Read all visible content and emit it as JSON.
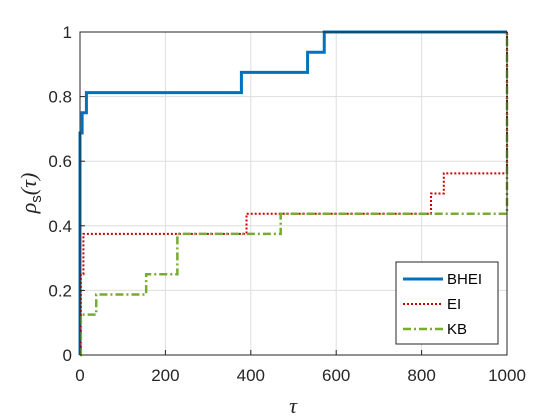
{
  "chart_data": {
    "type": "line",
    "step": true,
    "xlabel": "τ",
    "ylabel": "ρ",
    "ylabel_subscript": "s",
    "ylabel_suffix": "(τ)",
    "xlim": [
      0,
      1000
    ],
    "ylim": [
      0,
      1
    ],
    "xticks": [
      0,
      200,
      400,
      600,
      800,
      1000
    ],
    "yticks": [
      0,
      0.2,
      0.4,
      0.6,
      0.8,
      1
    ],
    "ytick_labels": [
      "0",
      "0.2",
      "0.4",
      "0.6",
      "0.8",
      "1"
    ],
    "grid": true,
    "legend_position": "bottom-right",
    "series": [
      {
        "name": "BHEI",
        "color": "#0072BD",
        "style": "solid",
        "x": [
          0,
          0,
          5,
          15,
          22,
          378,
          533,
          572,
          1000
        ],
        "y": [
          0,
          0.6875,
          0.75,
          0.8125,
          0.8125,
          0.875,
          0.9375,
          1,
          1
        ]
      },
      {
        "name": "EI",
        "color": "#D95319",
        "stroke": "#cc0000",
        "style": "dotted",
        "x": [
          0,
          2,
          8,
          390,
          822,
          852,
          1000,
          1000
        ],
        "y": [
          0,
          0.25,
          0.375,
          0.4375,
          0.5,
          0.5625,
          0.5625,
          1
        ]
      },
      {
        "name": "KB",
        "color": "#77AC30",
        "style": "dashdot",
        "x": [
          0,
          2,
          38,
          155,
          228,
          470,
          1000,
          1000
        ],
        "y": [
          0,
          0.125,
          0.1875,
          0.25,
          0.375,
          0.4375,
          0.4375,
          1
        ]
      }
    ]
  }
}
